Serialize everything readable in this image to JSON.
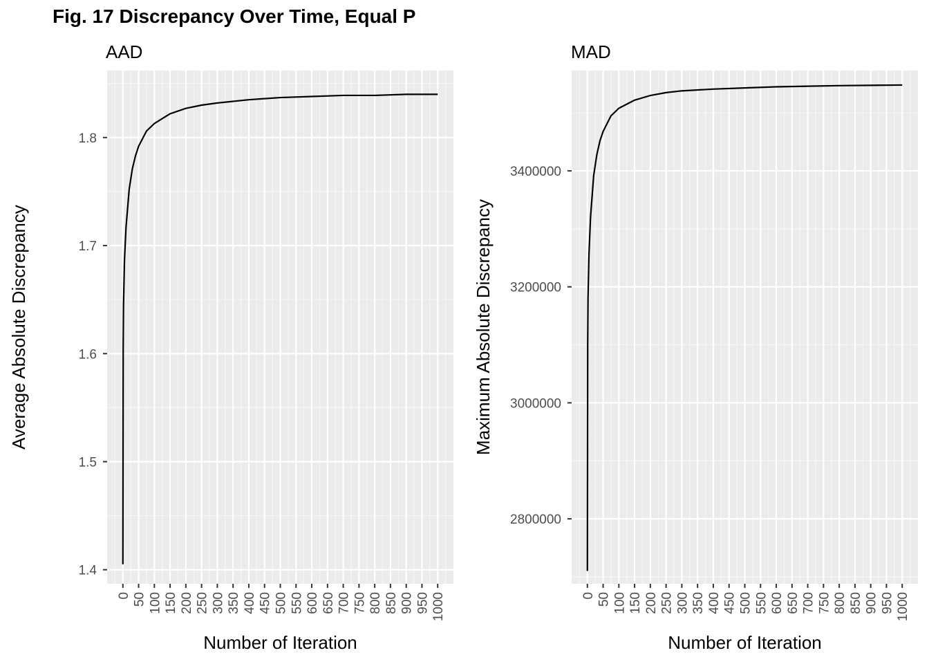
{
  "figure": {
    "title": "Fig. 17 Discrepancy Over Time, Equal P"
  },
  "colors": {
    "panel_background": "#ebebeb",
    "grid_major": "#ffffff",
    "grid_minor": "#f5f5f5",
    "line": "#000000",
    "tick_text": "#4d4d4d"
  },
  "chart_data": [
    {
      "type": "line",
      "title": "AAD",
      "xlabel": "Number of Iteration",
      "ylabel": "Average Absolute Discrepancy",
      "x_ticks": [
        0,
        50,
        100,
        150,
        200,
        250,
        300,
        350,
        400,
        450,
        500,
        550,
        600,
        650,
        700,
        750,
        800,
        850,
        900,
        950,
        1000
      ],
      "x_tick_labels": [
        "0",
        "50",
        "100",
        "150",
        "200",
        "250",
        "300",
        "350",
        "400",
        "450",
        "500",
        "550",
        "600",
        "650",
        "700",
        "750",
        "800",
        "850",
        "900",
        "950",
        "1000"
      ],
      "y_ticks": [
        1.4,
        1.5,
        1.6,
        1.7,
        1.8
      ],
      "y_tick_labels": [
        "1.4",
        "1.5",
        "1.6",
        "1.7",
        "1.8"
      ],
      "xlim": [
        -50,
        1050
      ],
      "ylim": [
        1.387,
        1.862
      ],
      "grid": true,
      "series": [
        {
          "x": [
            0,
            1,
            2,
            5,
            10,
            20,
            30,
            40,
            50,
            75,
            100,
            150,
            200,
            250,
            300,
            400,
            500,
            600,
            700,
            800,
            900,
            1000
          ],
          "values": [
            1.405,
            1.605,
            1.644,
            1.686,
            1.717,
            1.752,
            1.771,
            1.783,
            1.792,
            1.806,
            1.813,
            1.822,
            1.827,
            1.83,
            1.832,
            1.835,
            1.837,
            1.838,
            1.839,
            1.839,
            1.84,
            1.84
          ]
        }
      ]
    },
    {
      "type": "line",
      "title": "MAD",
      "xlabel": "Number of Iteration",
      "ylabel": "Maximum Absolute Discrepancy",
      "x_ticks": [
        0,
        50,
        100,
        150,
        200,
        250,
        300,
        350,
        400,
        450,
        500,
        550,
        600,
        650,
        700,
        750,
        800,
        850,
        900,
        950,
        1000
      ],
      "x_tick_labels": [
        "0",
        "50",
        "100",
        "150",
        "200",
        "250",
        "300",
        "350",
        "400",
        "450",
        "500",
        "550",
        "600",
        "650",
        "700",
        "750",
        "800",
        "850",
        "900",
        "950",
        "1000"
      ],
      "y_ticks": [
        2800000,
        3000000,
        3200000,
        3400000
      ],
      "y_tick_labels": [
        "2800000",
        "3000000",
        "3200000",
        "3400000"
      ],
      "xlim": [
        -50,
        1050
      ],
      "ylim": [
        2688000,
        3573000
      ],
      "grid": true,
      "series": [
        {
          "x": [
            0,
            1,
            2,
            5,
            10,
            20,
            30,
            40,
            50,
            75,
            100,
            150,
            200,
            250,
            300,
            400,
            500,
            600,
            700,
            800,
            900,
            1000
          ],
          "values": [
            2710000,
            3100000,
            3180000,
            3255000,
            3320000,
            3392000,
            3428000,
            3452000,
            3468000,
            3495000,
            3508000,
            3522000,
            3530000,
            3535000,
            3538000,
            3541000,
            3543000,
            3545000,
            3546000,
            3547000,
            3547500,
            3548000
          ]
        }
      ]
    }
  ]
}
